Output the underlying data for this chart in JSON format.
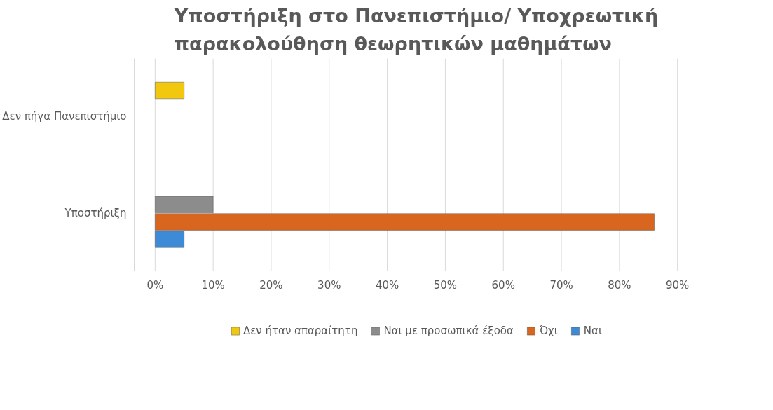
{
  "chart_data": {
    "type": "bar",
    "orientation": "horizontal",
    "title": "Υποστήριξη στο Πανεπιστήμιο/ Υποχρεωτική παρακολούθηση θεωρητικών μαθημάτων",
    "categories": [
      "Δεν πήγα Πανεπιστήμιο",
      "Υποστήριξη"
    ],
    "series": [
      {
        "name": "Ναι",
        "color": "#3d8ad6",
        "values": [
          null,
          5
        ]
      },
      {
        "name": "Όχι",
        "color": "#d9661f",
        "values": [
          null,
          86
        ]
      },
      {
        "name": "Ναι με προσωπικά έξοδα",
        "color": "#8c8c8c",
        "values": [
          null,
          10
        ]
      },
      {
        "name": "Δεν ήταν απαραίτητη",
        "color": "#f2c80f",
        "values": [
          5,
          null
        ]
      }
    ],
    "xlim": [
      0,
      90
    ],
    "xticks": [
      {
        "value": 0,
        "label": "0%"
      },
      {
        "value": 10,
        "label": "10%"
      },
      {
        "value": 20,
        "label": "20%"
      },
      {
        "value": 30,
        "label": "30%"
      },
      {
        "value": 40,
        "label": "40%"
      },
      {
        "value": 50,
        "label": "50%"
      },
      {
        "value": 60,
        "label": "60%"
      },
      {
        "value": 70,
        "label": "70%"
      },
      {
        "value": 80,
        "label": "80%"
      },
      {
        "value": 90,
        "label": "90%"
      }
    ],
    "grid": "x",
    "legend": "bottom"
  }
}
